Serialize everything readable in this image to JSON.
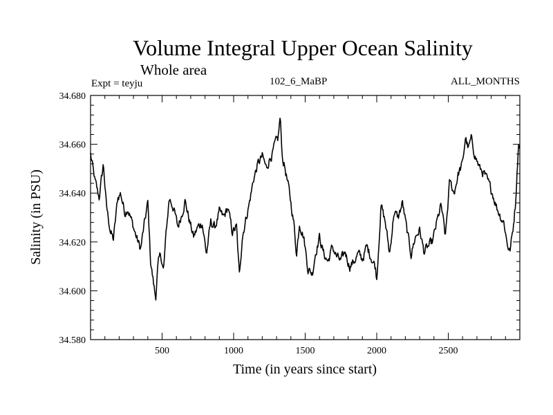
{
  "chart_data": {
    "type": "line",
    "title": "Volume Integral Upper Ocean Salinity",
    "subtitle": "Whole area",
    "left_label": "Expt = teyju",
    "center_label": "102_6_MaBP",
    "right_label": "ALL_MONTHS",
    "xlabel": "Time (in years since start)",
    "ylabel": "Salinity (in PSU)",
    "xlim": [
      0,
      3000
    ],
    "ylim": [
      34.58,
      34.68
    ],
    "xticks": [
      500,
      1000,
      1500,
      2000,
      2500
    ],
    "xtick_labels": [
      "500",
      "1000",
      "1500",
      "2000",
      "2500"
    ],
    "yticks": [
      34.58,
      34.6,
      34.62,
      34.64,
      34.66,
      34.68
    ],
    "ytick_labels": [
      "34.580",
      "34.600",
      "34.620",
      "34.640",
      "34.660",
      "34.680"
    ],
    "grid": false,
    "series": [
      {
        "name": "salinity",
        "x": [
          0,
          30,
          60,
          90,
          110,
          140,
          160,
          190,
          210,
          240,
          260,
          290,
          320,
          350,
          370,
          400,
          420,
          440,
          455,
          470,
          490,
          510,
          530,
          550,
          580,
          610,
          640,
          660,
          690,
          720,
          750,
          780,
          810,
          840,
          870,
          900,
          930,
          960,
          990,
          1020,
          1040,
          1060,
          1080,
          1110,
          1140,
          1170,
          1200,
          1230,
          1250,
          1270,
          1290,
          1310,
          1325,
          1340,
          1360,
          1390,
          1420,
          1440,
          1460,
          1490,
          1520,
          1550,
          1570,
          1600,
          1630,
          1660,
          1690,
          1720,
          1750,
          1780,
          1810,
          1840,
          1870,
          1900,
          1930,
          1960,
          1990,
          2000,
          2030,
          2060,
          2090,
          2120,
          2150,
          2180,
          2210,
          2240,
          2270,
          2300,
          2330,
          2360,
          2390,
          2420,
          2450,
          2480,
          2510,
          2540,
          2570,
          2600,
          2620,
          2640,
          2660,
          2690,
          2720,
          2750,
          2780,
          2810,
          2840,
          2870,
          2890,
          2910,
          2930,
          2950,
          2970,
          2990
        ],
        "values": [
          34.656,
          34.645,
          34.638,
          34.652,
          34.635,
          34.624,
          34.621,
          34.638,
          34.64,
          34.632,
          34.634,
          34.628,
          34.622,
          34.617,
          34.625,
          34.636,
          34.612,
          34.603,
          34.597,
          34.61,
          34.615,
          34.608,
          34.625,
          34.638,
          34.634,
          34.626,
          34.632,
          34.637,
          34.629,
          34.622,
          34.626,
          34.628,
          34.615,
          34.628,
          34.626,
          34.632,
          34.63,
          34.634,
          34.624,
          34.626,
          34.606,
          34.622,
          34.628,
          34.636,
          34.646,
          34.652,
          34.655,
          34.65,
          34.654,
          34.656,
          34.66,
          34.662,
          34.671,
          34.655,
          34.65,
          34.64,
          34.628,
          34.615,
          34.628,
          34.622,
          34.609,
          34.607,
          34.615,
          34.622,
          34.615,
          34.612,
          34.618,
          34.614,
          34.612,
          34.616,
          34.61,
          34.612,
          34.615,
          34.613,
          34.618,
          34.614,
          34.61,
          34.605,
          34.635,
          34.628,
          34.615,
          34.632,
          34.63,
          34.636,
          34.625,
          34.615,
          34.622,
          34.625,
          34.616,
          34.618,
          34.62,
          34.628,
          34.635,
          34.622,
          34.645,
          34.64,
          34.648,
          34.652,
          34.663,
          34.658,
          34.662,
          34.655,
          34.65,
          34.648,
          34.644,
          34.64,
          34.634,
          34.63,
          34.628,
          34.62,
          34.616,
          34.624,
          34.636,
          34.66
        ]
      }
    ]
  }
}
